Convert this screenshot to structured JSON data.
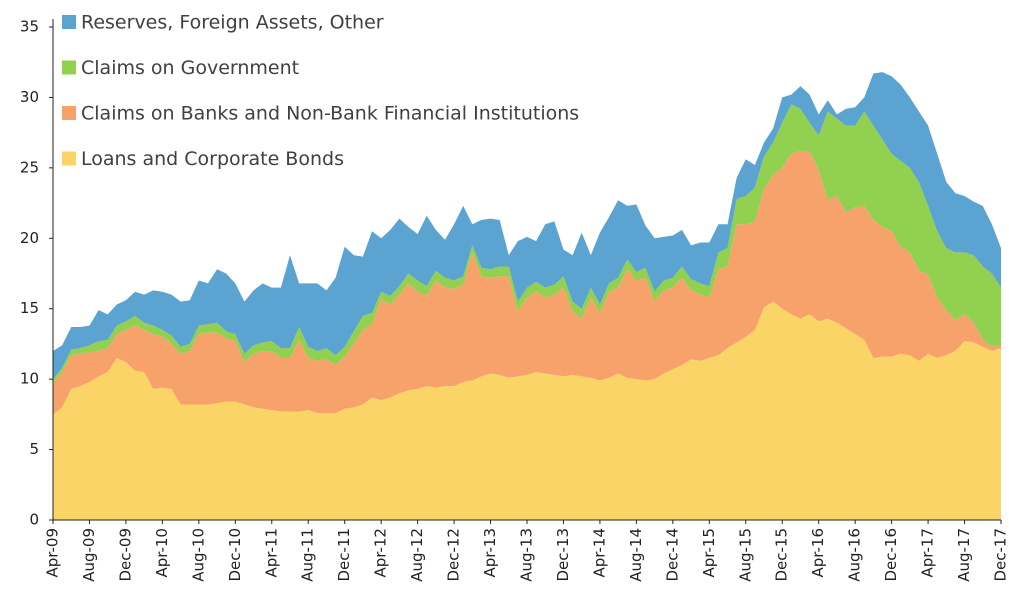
{
  "chart_data": {
    "type": "stacked_area",
    "categories": [
      "Apr-09",
      null,
      null,
      null,
      "Aug-09",
      null,
      null,
      null,
      "Dec-09",
      null,
      null,
      null,
      "Apr-10",
      null,
      null,
      null,
      "Aug-10",
      null,
      null,
      null,
      "Dec-10",
      null,
      null,
      null,
      "Apr-11",
      null,
      null,
      null,
      "Aug-11",
      null,
      null,
      null,
      "Dec-11",
      null,
      null,
      null,
      "Apr-12",
      null,
      null,
      null,
      "Aug-12",
      null,
      null,
      null,
      "Dec-12",
      null,
      null,
      null,
      "Apr-13",
      null,
      null,
      null,
      "Aug-13",
      null,
      null,
      null,
      "Dec-13",
      null,
      null,
      null,
      "Apr-14",
      null,
      null,
      null,
      "Aug-14",
      null,
      null,
      null,
      "Dec-14",
      null,
      null,
      null,
      "Apr-15",
      null,
      null,
      null,
      "Aug-15",
      null,
      null,
      null,
      "Dec-15",
      null,
      null,
      null,
      "Apr-16",
      null,
      null,
      null,
      "Aug-16",
      null,
      null,
      null,
      "Dec-16",
      null,
      null,
      null,
      "Apr-17",
      null,
      null,
      null,
      "Aug-17",
      null,
      null,
      null,
      "Dec-17"
    ],
    "series": [
      {
        "name": "Loans and Corporate Bonds",
        "color": "#fad466",
        "values": [
          7.5,
          8.0,
          9.3,
          9.5,
          9.8,
          10.2,
          10.5,
          11.5,
          11.2,
          10.6,
          10.5,
          9.3,
          9.4,
          9.3,
          8.2,
          8.2,
          8.2,
          8.2,
          8.3,
          8.4,
          8.4,
          8.2,
          8.0,
          7.9,
          7.8,
          7.7,
          7.7,
          7.7,
          7.8,
          7.6,
          7.6,
          7.6,
          7.9,
          8.0,
          8.2,
          8.7,
          8.5,
          8.7,
          9.0,
          9.2,
          9.3,
          9.5,
          9.4,
          9.5,
          9.5,
          9.8,
          9.9,
          10.2,
          10.4,
          10.3,
          10.1,
          10.2,
          10.3,
          10.5,
          10.4,
          10.3,
          10.2,
          10.3,
          10.2,
          10.1,
          9.9,
          10.1,
          10.4,
          10.1,
          10.0,
          9.9,
          10.0,
          10.4,
          10.7,
          11.0,
          11.4,
          11.3,
          11.5,
          11.7,
          12.2,
          12.6,
          13.0,
          13.5,
          15.1,
          15.5,
          15.0,
          14.6,
          14.3,
          14.6,
          14.1,
          14.3,
          14.0,
          13.6,
          13.2,
          12.8,
          11.5,
          11.6,
          11.6,
          11.8,
          11.7,
          11.3,
          11.8,
          11.5,
          11.7,
          12.0,
          12.7,
          12.6,
          12.3,
          12.0,
          12.2
        ]
      },
      {
        "name": "Claims on Banks and Non-Bank Financial Institutions",
        "color": "#f8a26b",
        "values": [
          2.2,
          2.5,
          2.4,
          2.3,
          2.1,
          1.8,
          1.7,
          1.7,
          2.3,
          3.2,
          3.0,
          3.9,
          3.6,
          3.2,
          3.6,
          3.8,
          5.0,
          5.1,
          5.0,
          4.5,
          4.3,
          3.0,
          3.8,
          4.1,
          4.2,
          3.8,
          3.8,
          5.1,
          3.7,
          3.7,
          3.8,
          3.4,
          3.7,
          4.5,
          5.3,
          5.2,
          7.2,
          6.6,
          7.0,
          7.6,
          6.9,
          6.4,
          7.6,
          7.0,
          6.9,
          6.9,
          9.1,
          7.1,
          6.8,
          7.0,
          7.2,
          4.6,
          5.5,
          5.7,
          5.4,
          5.7,
          6.3,
          4.5,
          4.1,
          5.7,
          4.8,
          6.1,
          6.1,
          7.7,
          7.0,
          7.3,
          5.5,
          5.9,
          5.8,
          6.2,
          4.9,
          4.7,
          4.3,
          6.1,
          5.8,
          8.4,
          8.0,
          7.7,
          8.4,
          9.0,
          10.0,
          11.4,
          11.9,
          11.6,
          10.7,
          8.4,
          9.0,
          8.2,
          9.0,
          9.5,
          9.8,
          9.2,
          8.9,
          7.6,
          7.3,
          6.4,
          5.6,
          4.3,
          3.2,
          2.2,
          1.9,
          1.4,
          0.5,
          0.3,
          0.2
        ]
      },
      {
        "name": "Claims on Government",
        "color": "#92d050",
        "values": [
          0.3,
          0.3,
          0.4,
          0.4,
          0.5,
          0.7,
          0.6,
          0.6,
          0.6,
          0.7,
          0.5,
          0.6,
          0.5,
          0.6,
          0.5,
          0.5,
          0.6,
          0.6,
          0.7,
          0.5,
          0.5,
          0.6,
          0.6,
          0.6,
          0.7,
          0.7,
          0.7,
          0.9,
          0.8,
          0.7,
          0.8,
          0.7,
          0.7,
          0.9,
          1.0,
          0.8,
          0.5,
          0.6,
          0.6,
          0.7,
          0.8,
          0.7,
          0.7,
          0.7,
          0.6,
          0.6,
          0.5,
          0.6,
          0.6,
          0.7,
          0.7,
          0.7,
          0.7,
          0.7,
          0.7,
          0.7,
          0.8,
          0.7,
          0.7,
          0.7,
          0.6,
          0.6,
          0.7,
          0.7,
          0.6,
          0.7,
          0.7,
          0.7,
          0.7,
          0.8,
          0.8,
          0.8,
          0.8,
          1.2,
          1.3,
          1.8,
          2.0,
          2.4,
          2.3,
          2.3,
          3.2,
          3.5,
          3.0,
          2.0,
          2.5,
          6.3,
          5.5,
          6.2,
          5.8,
          6.7,
          6.7,
          6.2,
          5.5,
          6.1,
          6.0,
          6.3,
          4.9,
          4.7,
          4.4,
          4.8,
          4.4,
          4.8,
          5.2,
          5.2,
          4.1
        ]
      },
      {
        "name": "Reserves, Foreign Assets, Other",
        "color": "#5ba3d0",
        "values": [
          2.0,
          1.6,
          1.6,
          1.5,
          1.4,
          2.2,
          1.8,
          1.5,
          1.5,
          1.7,
          2.0,
          2.5,
          2.7,
          2.9,
          3.2,
          3.1,
          3.2,
          2.9,
          3.8,
          4.1,
          3.6,
          3.7,
          3.9,
          4.2,
          3.8,
          4.3,
          6.6,
          3.1,
          4.5,
          4.8,
          4.1,
          5.5,
          7.1,
          5.4,
          4.2,
          5.8,
          3.8,
          4.7,
          4.8,
          3.3,
          3.3,
          5.0,
          2.9,
          2.7,
          4.0,
          5.0,
          1.5,
          3.4,
          3.6,
          3.3,
          0.8,
          4.3,
          3.6,
          2.9,
          4.5,
          4.5,
          1.9,
          3.3,
          5.4,
          2.3,
          5.1,
          4.7,
          5.5,
          3.8,
          4.8,
          3.0,
          3.8,
          3.1,
          3.0,
          2.6,
          2.4,
          2.9,
          3.1,
          2.0,
          1.7,
          1.5,
          2.6,
          1.6,
          1.0,
          1.0,
          1.8,
          0.7,
          1.6,
          2.0,
          1.5,
          0.8,
          0.3,
          1.2,
          1.3,
          1.0,
          3.7,
          4.8,
          5.5,
          5.4,
          5.0,
          5.0,
          5.7,
          5.5,
          4.7,
          4.2,
          4.0,
          3.8,
          4.3,
          3.5,
          2.8
        ]
      }
    ],
    "ylim": [
      0,
      35
    ],
    "yticks": [
      0,
      5,
      10,
      15,
      20,
      25,
      30,
      35
    ],
    "grid": false,
    "legend": "top-left"
  }
}
